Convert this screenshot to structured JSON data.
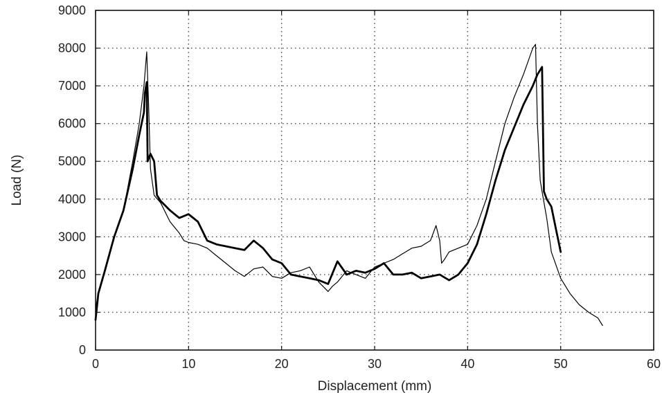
{
  "chart_data": {
    "type": "line",
    "title": "",
    "xlabel": "Displacement (mm)",
    "ylabel": "Load (N)",
    "xlim": [
      0,
      60
    ],
    "ylim": [
      0,
      9000
    ],
    "xticks": [
      "0",
      "10",
      "20",
      "30",
      "40",
      "50",
      "60"
    ],
    "yticks": [
      "0",
      "1000",
      "2000",
      "3000",
      "4000",
      "5000",
      "6000",
      "7000",
      "8000",
      "9000"
    ],
    "grid": true,
    "legend": "none",
    "series": [
      {
        "color": "#000000",
        "style": "thin",
        "x": [
          0,
          0.3,
          1,
          2,
          3,
          4,
          4.7,
          5.2,
          5.5,
          5.7,
          5.9,
          6.3,
          7,
          8,
          9,
          9.5,
          10,
          11,
          12,
          13,
          14,
          15,
          16,
          17,
          18,
          19,
          20,
          21,
          22,
          23,
          24,
          25,
          25.5,
          26,
          27,
          28,
          29,
          30,
          31,
          32,
          33,
          34,
          35,
          36,
          36.6,
          37,
          37.2,
          37.5,
          38,
          39,
          40,
          41,
          42,
          43,
          44,
          45,
          46,
          47,
          47.3,
          47.5,
          47.8,
          48,
          48.5,
          49,
          50,
          51,
          52,
          53,
          54,
          54.5
        ],
        "y": [
          1100,
          1500,
          2100,
          3000,
          3700,
          5000,
          6000,
          7000,
          7900,
          6500,
          4800,
          4100,
          3900,
          3400,
          3100,
          2900,
          2850,
          2800,
          2700,
          2500,
          2300,
          2100,
          1950,
          2150,
          2200,
          1950,
          1900,
          2050,
          2100,
          2200,
          1800,
          1550,
          1700,
          1800,
          2100,
          2000,
          1900,
          2200,
          2300,
          2400,
          2550,
          2700,
          2750,
          2900,
          3300,
          2900,
          2300,
          2400,
          2600,
          2700,
          2800,
          3300,
          4000,
          5000,
          6000,
          6700,
          7300,
          8000,
          8100,
          6000,
          4500,
          4200,
          3500,
          2600,
          1900,
          1500,
          1200,
          1000,
          850,
          650
        ]
      },
      {
        "color": "#000000",
        "style": "thick",
        "x": [
          0,
          0.3,
          1,
          2,
          3,
          4,
          4.7,
          5.2,
          5.3,
          5.5,
          5.6,
          5.9,
          6.3,
          6.6,
          7,
          8,
          9,
          10,
          11,
          12,
          13,
          14,
          15,
          16,
          17,
          18,
          19,
          20,
          21,
          22,
          23,
          24,
          25,
          26,
          27,
          28,
          29,
          30,
          31,
          32,
          33,
          34,
          35,
          36,
          37,
          38,
          39,
          40,
          41,
          42,
          43,
          44,
          45,
          46,
          47,
          47.5,
          48,
          48.2,
          48.5,
          49,
          49.5,
          50
        ],
        "y": [
          800,
          1500,
          2100,
          3000,
          3700,
          4800,
          5700,
          6300,
          6800,
          7100,
          5000,
          5200,
          5000,
          4100,
          3950,
          3700,
          3500,
          3600,
          3400,
          2900,
          2800,
          2750,
          2700,
          2650,
          2900,
          2700,
          2400,
          2300,
          2000,
          1950,
          1900,
          1850,
          1750,
          2350,
          2000,
          2100,
          2050,
          2150,
          2300,
          2000,
          2000,
          2050,
          1900,
          1950,
          2000,
          1850,
          2000,
          2300,
          2800,
          3600,
          4500,
          5300,
          5900,
          6500,
          7000,
          7300,
          7500,
          4200,
          4000,
          3800,
          3200,
          2600
        ]
      }
    ]
  }
}
